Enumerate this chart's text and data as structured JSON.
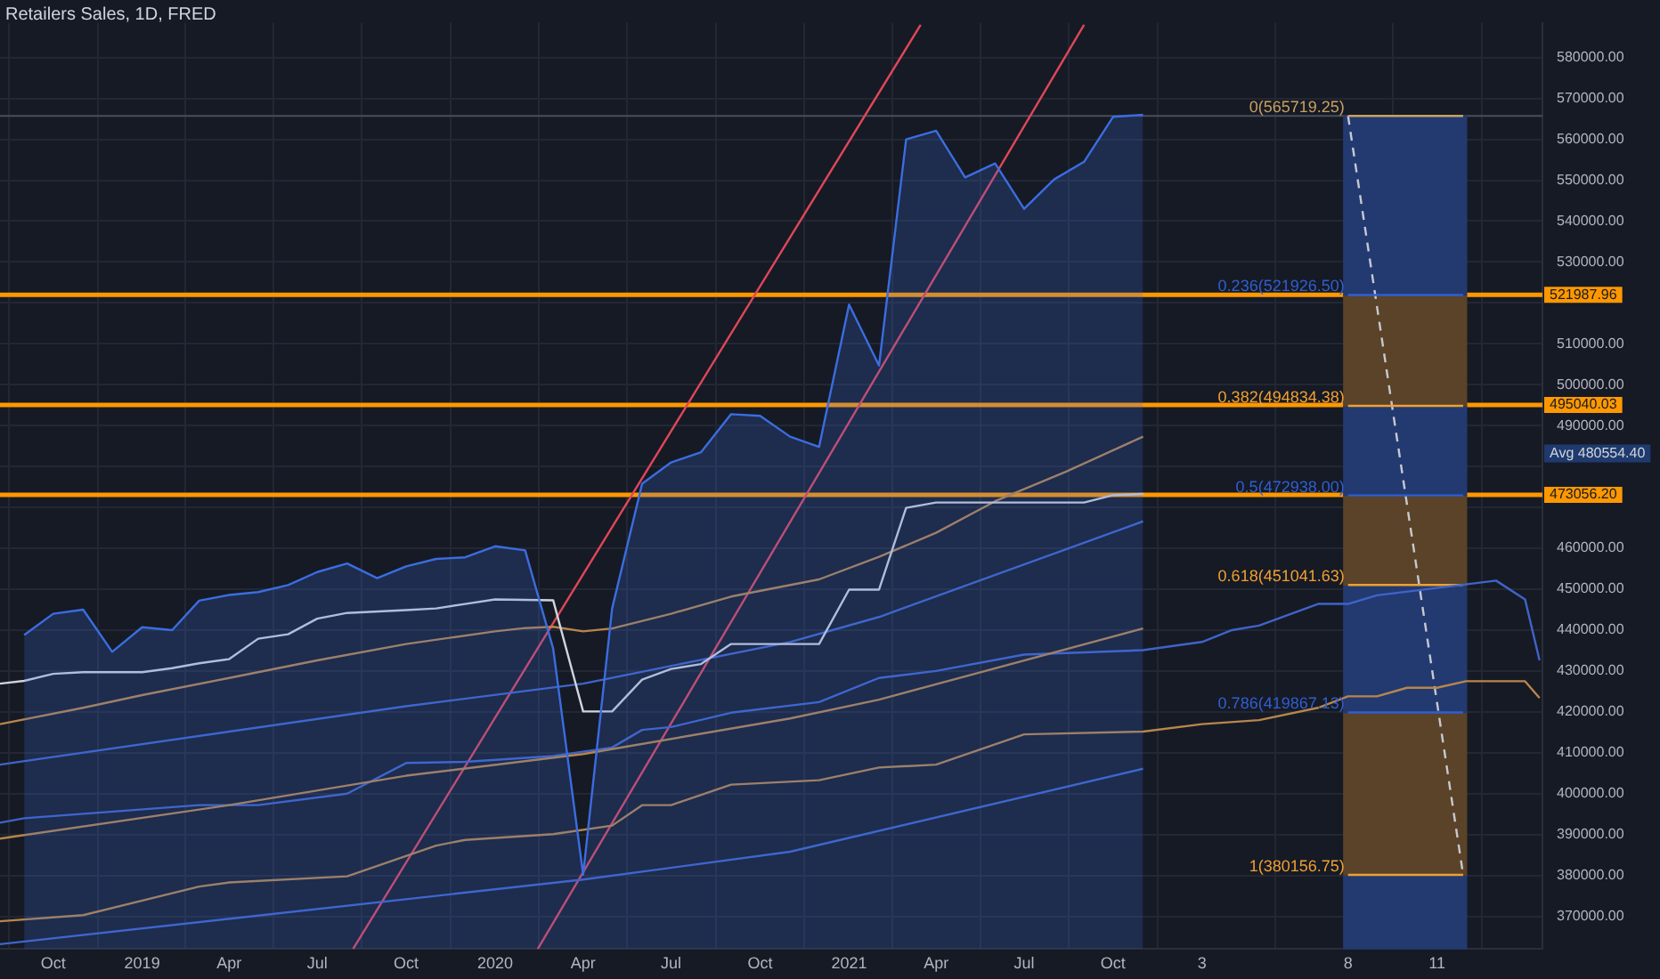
{
  "chart_data": {
    "type": "line",
    "title": "Retailers Sales, 1D, FRED",
    "xlim": [
      "2018-08-07",
      "2022-12-19"
    ],
    "ylim": [
      362000,
      588500
    ],
    "xticks": [
      {
        "value": "2018-10",
        "label": "Oct"
      },
      {
        "value": "2019-01",
        "label": "2019"
      },
      {
        "value": "2019-04",
        "label": "Apr"
      },
      {
        "value": "2019-07",
        "label": "Jul"
      },
      {
        "value": "2019-10",
        "label": "Oct"
      },
      {
        "value": "2020-01",
        "label": "2020"
      },
      {
        "value": "2020-04",
        "label": "Apr"
      },
      {
        "value": "2020-07",
        "label": "Jul"
      },
      {
        "value": "2020-10",
        "label": "Oct"
      },
      {
        "value": "2021-01",
        "label": "2021"
      },
      {
        "value": "2021-04",
        "label": "Apr"
      },
      {
        "value": "2021-07",
        "label": "Jul"
      },
      {
        "value": "2021-10",
        "label": "Oct"
      },
      {
        "value": "2022-01",
        "label": "3"
      },
      {
        "value": "2022-06",
        "label": "8"
      },
      {
        "value": "2022-09",
        "label": "11"
      }
    ],
    "yticks": [
      {
        "value": 370000,
        "label": "370000.00"
      },
      {
        "value": 380000,
        "label": "380000.00"
      },
      {
        "value": 390000,
        "label": "390000.00"
      },
      {
        "value": 400000,
        "label": "400000.00"
      },
      {
        "value": 410000,
        "label": "410000.00"
      },
      {
        "value": 420000,
        "label": "420000.00"
      },
      {
        "value": 430000,
        "label": "430000.00"
      },
      {
        "value": 440000,
        "label": "440000.00"
      },
      {
        "value": 450000,
        "label": "450000.00"
      },
      {
        "value": 460000,
        "label": "460000.00"
      },
      {
        "value": 470000,
        "label": null
      },
      {
        "value": 480000,
        "label": null
      },
      {
        "value": 490000,
        "label": "490000.00"
      },
      {
        "value": 500000,
        "label": "500000.00"
      },
      {
        "value": 510000,
        "label": "510000.00"
      },
      {
        "value": 520000,
        "label": null
      },
      {
        "value": 530000,
        "label": "530000.00"
      },
      {
        "value": 540000,
        "label": "540000.00"
      },
      {
        "value": 550000,
        "label": "550000.00"
      },
      {
        "value": 560000,
        "label": "560000.00"
      },
      {
        "value": 570000,
        "label": "570000.00"
      },
      {
        "value": 580000,
        "label": "580000.00"
      }
    ],
    "grid": true,
    "legend": false,
    "marker": "none",
    "series": [
      {
        "type": "area",
        "color": "#3b6de0",
        "x": [
          "2018-09",
          "2018-10",
          "2018-11",
          "2018-12",
          "2019-01",
          "2019-02",
          "2019-03",
          "2019-04",
          "2019-05",
          "2019-06",
          "2019-07",
          "2019-08",
          "2019-09",
          "2019-10",
          "2019-11",
          "2019-12",
          "2020-01",
          "2020-02",
          "2020-03",
          "2020-04",
          "2020-05",
          "2020-06",
          "2020-07",
          "2020-08",
          "2020-09",
          "2020-10",
          "2020-11",
          "2020-12",
          "2021-01",
          "2021-02",
          "2021-03",
          "2021-04",
          "2021-05",
          "2021-06",
          "2021-07",
          "2021-08",
          "2021-09",
          "2021-10",
          "2021-11"
        ],
        "values": [
          438800,
          444000,
          445000,
          434700,
          440700,
          440000,
          447200,
          448600,
          449300,
          451000,
          454200,
          456300,
          452700,
          455600,
          457400,
          457800,
          460500,
          459500,
          435500,
          380200,
          445300,
          475800,
          481000,
          483500,
          492800,
          492400,
          487300,
          484800,
          519600,
          504700,
          560000,
          562100,
          550700,
          554100,
          543000,
          550200,
          554500,
          565500,
          566000
        ]
      },
      {
        "color": "#d1d4dc",
        "x": [
          "2018-08-07",
          "2018-09",
          "2018-10",
          "2018-11",
          "2019-01",
          "2019-02",
          "2019-03",
          "2019-04",
          "2019-05",
          "2019-06",
          "2019-07",
          "2019-08",
          "2019-10",
          "2019-11",
          "2019-12",
          "2020-01",
          "2020-03",
          "2020-04",
          "2020-05",
          "2020-06",
          "2020-07",
          "2020-08",
          "2020-09",
          "2020-11",
          "2020-12",
          "2021-01",
          "2021-02",
          "2021-03",
          "2021-04",
          "2021-09",
          "2021-10",
          "2021-11"
        ],
        "values": [
          426900,
          427600,
          429300,
          429700,
          429700,
          430700,
          431900,
          432900,
          437900,
          439000,
          442800,
          444200,
          444900,
          445300,
          446400,
          447500,
          447300,
          420100,
          420100,
          427900,
          430500,
          431700,
          436600,
          436600,
          436600,
          449900,
          449900,
          469900,
          471200,
          471200,
          473000,
          473300
        ]
      },
      {
        "color": "#b8864b",
        "x": [
          "2018-08-07",
          "2018-11",
          "2019-01",
          "2019-04",
          "2019-07",
          "2019-10",
          "2020-01",
          "2020-02",
          "2020-03",
          "2020-04",
          "2020-05",
          "2020-07",
          "2020-09",
          "2020-12",
          "2021-02",
          "2021-04",
          "2021-06",
          "2021-08-13",
          "2021-11"
        ],
        "values": [
          417000,
          421000,
          424100,
          428300,
          432600,
          436600,
          439700,
          440500,
          440800,
          439700,
          440400,
          444000,
          448200,
          452400,
          457900,
          463800,
          471500,
          478700,
          487300
        ]
      },
      {
        "color": "#3f64c8",
        "x": [
          "2018-08-07",
          "2019-10",
          "2020-04",
          "2020-11",
          "2021-02",
          "2021-11"
        ],
        "values": [
          407100,
          421400,
          426900,
          437100,
          443200,
          466600
        ]
      },
      {
        "color": "#b8864b",
        "x": [
          "2018-08-07",
          "2019-04",
          "2019-10",
          "2020-04",
          "2020-11",
          "2021-02",
          "2021-11"
        ],
        "values": [
          389000,
          397200,
          404400,
          409700,
          418400,
          423000,
          440400
        ]
      },
      {
        "color": "#3f64c8",
        "x": [
          "2018-08-07",
          "2020-04",
          "2020-11",
          "2021-11"
        ],
        "values": [
          363200,
          379000,
          385800,
          406100
        ]
      },
      {
        "color": "#3f64c8",
        "x": [
          "2018-08-07",
          "2018-09",
          "2019-03",
          "2019-05",
          "2019-08",
          "2019-10",
          "2019-12",
          "2020-03",
          "2020-05",
          "2020-06",
          "2020-07",
          "2020-09",
          "2020-12",
          "2021-02",
          "2021-04",
          "2021-07",
          "2021-11",
          "2022-01",
          "2022-02",
          "2022-03",
          "2022-05",
          "2022-06",
          "2022-07",
          "2022-09",
          "2022-11",
          "2022-12",
          "2022-12-16"
        ],
        "values": [
          392900,
          394000,
          397200,
          397200,
          400000,
          407500,
          407800,
          409200,
          411300,
          415600,
          416300,
          419800,
          422400,
          428300,
          430000,
          434000,
          435100,
          437100,
          440000,
          441100,
          446400,
          446400,
          448500,
          450300,
          452100,
          447500,
          432600
        ]
      },
      {
        "color": "#b8864b",
        "x": [
          "2018-08-07",
          "2018-11",
          "2019-03",
          "2019-04",
          "2019-08",
          "2019-11",
          "2019-12",
          "2020-03",
          "2020-05",
          "2020-06",
          "2020-07",
          "2020-09",
          "2020-12",
          "2021-02",
          "2021-04",
          "2021-07",
          "2021-11",
          "2022-01",
          "2022-03",
          "2022-05",
          "2022-06",
          "2022-07",
          "2022-08",
          "2022-09",
          "2022-10",
          "2022-12",
          "2022-12-16"
        ],
        "values": [
          368800,
          370300,
          377300,
          378300,
          379800,
          387300,
          388700,
          390100,
          392200,
          397200,
          397200,
          402200,
          403300,
          406400,
          407100,
          414500,
          415200,
          417000,
          418000,
          421000,
          423800,
          423800,
          425900,
          425900,
          427500,
          427500,
          423400
        ]
      },
      {
        "color": "#e0475a",
        "x": [
          "2019-08-07",
          "2021-03-16"
        ],
        "values": [
          362000,
          588000
        ]
      },
      {
        "color": "#e0475a",
        "x": [
          "2020-02-14",
          "2021-09"
        ],
        "values": [
          362000,
          588000
        ]
      },
      {
        "color": "#c8a060",
        "x": [
          "2022-06",
          "2022-09-28"
        ],
        "values": [
          565719.25,
          565719.25
        ]
      },
      {
        "color": "#2f5fd0",
        "x": [
          "2022-06",
          "2022-09-28"
        ],
        "values": [
          521926.5,
          521926.5
        ]
      },
      {
        "color": "#f0a030",
        "x": [
          "2022-06",
          "2022-09-28"
        ],
        "values": [
          494834.38,
          494834.38
        ]
      },
      {
        "color": "#2f5fd0",
        "x": [
          "2022-06",
          "2022-09-28"
        ],
        "values": [
          472938,
          472938
        ]
      },
      {
        "color": "#f0a030",
        "x": [
          "2022-06",
          "2022-09-28"
        ],
        "values": [
          451041.63,
          451041.63
        ]
      },
      {
        "color": "#2f5fd0",
        "x": [
          "2022-06",
          "2022-09-28"
        ],
        "values": [
          419867.13,
          419867.13
        ]
      },
      {
        "color": "#f0a030",
        "x": [
          "2022-06",
          "2022-09-28"
        ],
        "values": [
          380156.75,
          380156.75
        ]
      },
      {
        "type": "bar",
        "x": [
          "2022-07-30"
        ],
        "base": [
          521926.5
        ],
        "values": [
          43792.75
        ],
        "color": "#233a70"
      },
      {
        "type": "bar",
        "x": [
          "2022-07-30"
        ],
        "base": [
          494834.38
        ],
        "values": [
          27092.12
        ],
        "color": "#5a4328"
      },
      {
        "type": "bar",
        "x": [
          "2022-07-30"
        ],
        "base": [
          472938
        ],
        "values": [
          21896.38
        ],
        "color": "#233a70"
      },
      {
        "type": "bar",
        "x": [
          "2022-07-30"
        ],
        "base": [
          451041.63
        ],
        "values": [
          21896.37
        ],
        "color": "#5a4328"
      },
      {
        "type": "bar",
        "x": [
          "2022-07-30"
        ],
        "base": [
          419867.13
        ],
        "values": [
          31174.5
        ],
        "color": "#233a70"
      },
      {
        "type": "bar",
        "x": [
          "2022-07-30"
        ],
        "base": [
          380156.75
        ],
        "values": [
          39710.38
        ],
        "color": "#5a4328"
      },
      {
        "type": "bar",
        "x": [
          "2022-07-30"
        ],
        "base": [
          362000
        ],
        "values": [
          18156.75
        ],
        "color": "#233a70"
      },
      {
        "color": "#c8c8d0",
        "line_style": "dashed",
        "x": [
          "2022-06",
          "2022-09-28"
        ],
        "values": [
          565719.25,
          380156.75
        ]
      }
    ],
    "ref_lines": [
      {
        "axis": "y",
        "value": 565719.25,
        "color": "#4a4e5a"
      },
      {
        "axis": "y",
        "value": 521987.96,
        "label": "521987.96",
        "color": "#ff9800"
      },
      {
        "axis": "y",
        "value": 495040.03,
        "label": "495040.03",
        "color": "#ff9800"
      },
      {
        "axis": "y",
        "value": 473056.2,
        "label": "473056.20",
        "color": "#ff9800"
      }
    ],
    "annotations": [
      {
        "text": "0(565719.25)",
        "x": "2022-06",
        "y": 565719.25
      },
      {
        "text": "0.236(521926.50)",
        "x": "2022-06",
        "y": 521926.5
      },
      {
        "text": "0.382(494834.38)",
        "x": "2022-06",
        "y": 494834.38
      },
      {
        "text": "0.5(472938.00)",
        "x": "2022-06",
        "y": 472938
      },
      {
        "text": "0.618(451041.63)",
        "x": "2022-06",
        "y": 451041.63
      },
      {
        "text": "0.786(419867.13)",
        "x": "2022-06",
        "y": 419867.13
      },
      {
        "text": "1(380156.75)",
        "x": "2022-06",
        "y": 380156.75
      },
      "Avg 480554.40"
    ]
  }
}
